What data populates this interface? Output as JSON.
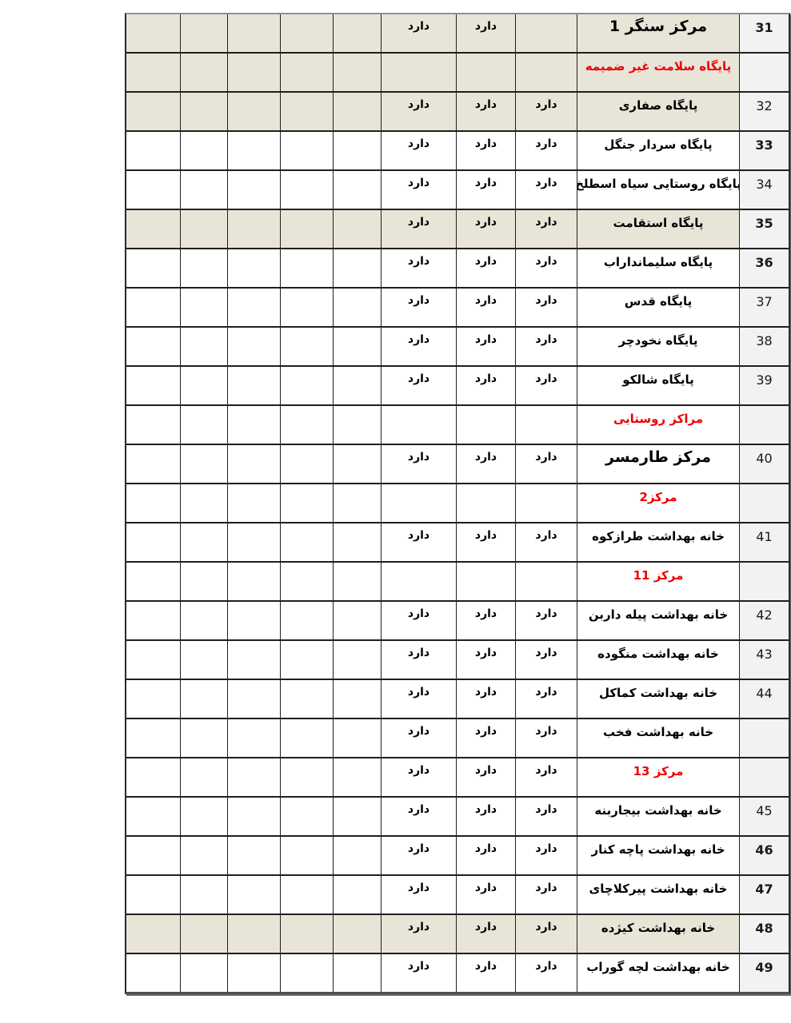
{
  "document": {
    "language": "fa",
    "direction": "rtl",
    "description_colors": {
      "shaded_row_bg": "#e8e5d8",
      "number_column_bg": "#f2f2f2",
      "red_header_text": "#ec0000",
      "grid_line": "#1f1f1f"
    }
  },
  "table": {
    "status_value": "دارد",
    "rows": [
      {
        "num": "31",
        "num_bold": true,
        "style": "big",
        "shaded": true,
        "name": "مرکز سنگر 1",
        "v1": "",
        "v2": "دارد",
        "v3": "دارد"
      },
      {
        "num": "",
        "num_bold": false,
        "style": "red",
        "shaded": true,
        "name": "پایگاه سلامت غیر ضمیمه",
        "v1": "",
        "v2": "",
        "v3": ""
      },
      {
        "num": "32",
        "num_bold": false,
        "style": "bold",
        "shaded": true,
        "name": "پایگاه صفاری",
        "v1": "دارد",
        "v2": "دارد",
        "v3": "دارد"
      },
      {
        "num": "33",
        "num_bold": true,
        "style": "bold",
        "shaded": false,
        "name": "پایگاه سردار جنگل",
        "v1": "دارد",
        "v2": "دارد",
        "v3": "دارد"
      },
      {
        "num": "34",
        "num_bold": false,
        "style": "bold",
        "shaded": false,
        "name": "پایگاه روستایی سیاه اسطلخ",
        "v1": "دارد",
        "v2": "دارد",
        "v3": "دارد"
      },
      {
        "num": "35",
        "num_bold": true,
        "style": "bold",
        "shaded": true,
        "name": "پایگاه استقامت",
        "v1": "دارد",
        "v2": "دارد",
        "v3": "دارد"
      },
      {
        "num": "36",
        "num_bold": true,
        "style": "bold",
        "shaded": false,
        "name": "پایگاه سلیمانداراب",
        "v1": "دارد",
        "v2": "دارد",
        "v3": "دارد"
      },
      {
        "num": "37",
        "num_bold": false,
        "style": "bold",
        "shaded": false,
        "name": "پایگاه قدس",
        "v1": "دارد",
        "v2": "دارد",
        "v3": "دارد"
      },
      {
        "num": "38",
        "num_bold": false,
        "style": "bold",
        "shaded": false,
        "name": "پایگاه نخودچر",
        "v1": "دارد",
        "v2": "دارد",
        "v3": "دارد"
      },
      {
        "num": "39",
        "num_bold": false,
        "style": "bold",
        "shaded": false,
        "name": "پایگاه شالکو",
        "v1": "دارد",
        "v2": "دارد",
        "v3": "دارد"
      },
      {
        "num": "",
        "num_bold": false,
        "style": "red",
        "shaded": false,
        "name": "مراکز روستایی",
        "v1": "",
        "v2": "",
        "v3": ""
      },
      {
        "num": "40",
        "num_bold": false,
        "style": "big",
        "shaded": false,
        "name": "مرکز  طارمسر",
        "v1": "دارد",
        "v2": "دارد",
        "v3": "دارد"
      },
      {
        "num": "",
        "num_bold": false,
        "style": "red",
        "shaded": false,
        "name": "مرکز2",
        "v1": "",
        "v2": "",
        "v3": ""
      },
      {
        "num": "41",
        "num_bold": false,
        "style": "bold",
        "shaded": false,
        "name": "خانه بهداشت طرازکوه",
        "v1": "دارد",
        "v2": "دارد",
        "v3": "دارد"
      },
      {
        "num": "",
        "num_bold": false,
        "style": "red",
        "shaded": false,
        "name": "مرکز 11",
        "v1": "",
        "v2": "",
        "v3": ""
      },
      {
        "num": "42",
        "num_bold": false,
        "style": "bold",
        "shaded": false,
        "name": "خانه بهداشت پیله داربن",
        "v1": "دارد",
        "v2": "دارد",
        "v3": "دارد"
      },
      {
        "num": "43",
        "num_bold": false,
        "style": "bold",
        "shaded": false,
        "name": "خانه بهداشت منگوده",
        "v1": "دارد",
        "v2": "دارد",
        "v3": "دارد"
      },
      {
        "num": "44",
        "num_bold": false,
        "style": "bold",
        "shaded": false,
        "name": "خانه بهداشت کماکل",
        "v1": "دارد",
        "v2": "دارد",
        "v3": "دارد"
      },
      {
        "num": "",
        "num_bold": false,
        "style": "bold",
        "shaded": false,
        "name": "خانه بهداشت فخب",
        "v1": "دارد",
        "v2": "دارد",
        "v3": "دارد"
      },
      {
        "num": "",
        "num_bold": false,
        "style": "red",
        "shaded": false,
        "name": "مرکز 13",
        "v1": "دارد",
        "v2": "دارد",
        "v3": "دارد"
      },
      {
        "num": "45",
        "num_bold": false,
        "style": "bold",
        "shaded": false,
        "name": "خانه بهداشت بیجاربنه",
        "v1": "دارد",
        "v2": "دارد",
        "v3": "دارد"
      },
      {
        "num": "46",
        "num_bold": true,
        "style": "bold",
        "shaded": false,
        "name": "خانه بهداشت پاچه کنار",
        "v1": "دارد",
        "v2": "دارد",
        "v3": "دارد"
      },
      {
        "num": "47",
        "num_bold": true,
        "style": "bold",
        "shaded": false,
        "name": "خانه بهداشت پیرکلاچای",
        "v1": "دارد",
        "v2": "دارد",
        "v3": "دارد"
      },
      {
        "num": "48",
        "num_bold": true,
        "style": "bold",
        "shaded": true,
        "name": "خانه بهداشت کیژده",
        "v1": "دارد",
        "v2": "دارد",
        "v3": "دارد"
      },
      {
        "num": "49",
        "num_bold": true,
        "style": "bold",
        "shaded": false,
        "name": "خانه بهداشت لچه گوراب",
        "v1": "دارد",
        "v2": "دارد",
        "v3": "دارد"
      }
    ]
  }
}
